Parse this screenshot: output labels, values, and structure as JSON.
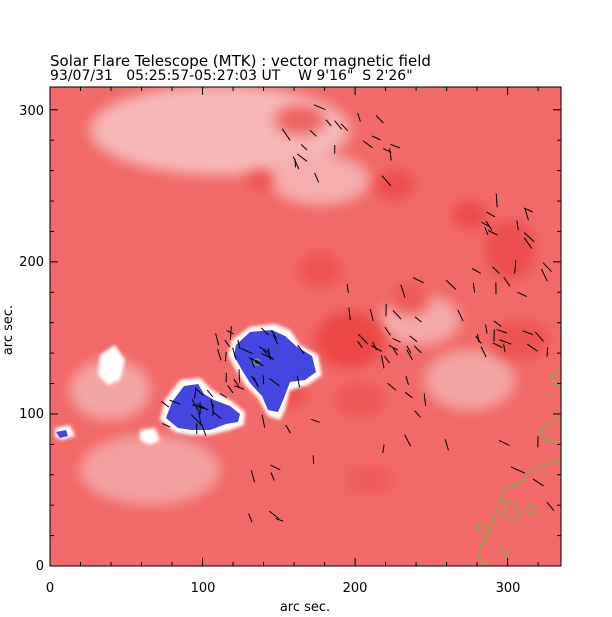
{
  "header": {
    "title": "Solar Flare Telescope (MTK) : vector magnetic field",
    "subtitle": "93/07/31   05:25:57-05:27:03 UT    W 9'16\"  S 2'26\""
  },
  "axes": {
    "xlabel": "arc sec.",
    "ylabel": "arc sec.",
    "xlim": [
      0,
      335
    ],
    "ylim": [
      0,
      315
    ],
    "xticks": [
      "0",
      "100",
      "200",
      "300"
    ],
    "yticks": [
      "0",
      "100",
      "200",
      "300"
    ]
  },
  "colors": {
    "positive_field": "#f26868",
    "negative_field": "#4040e0",
    "weak_field": "#ffffff",
    "vectors": "#000000",
    "contour": "#7ab648"
  }
}
